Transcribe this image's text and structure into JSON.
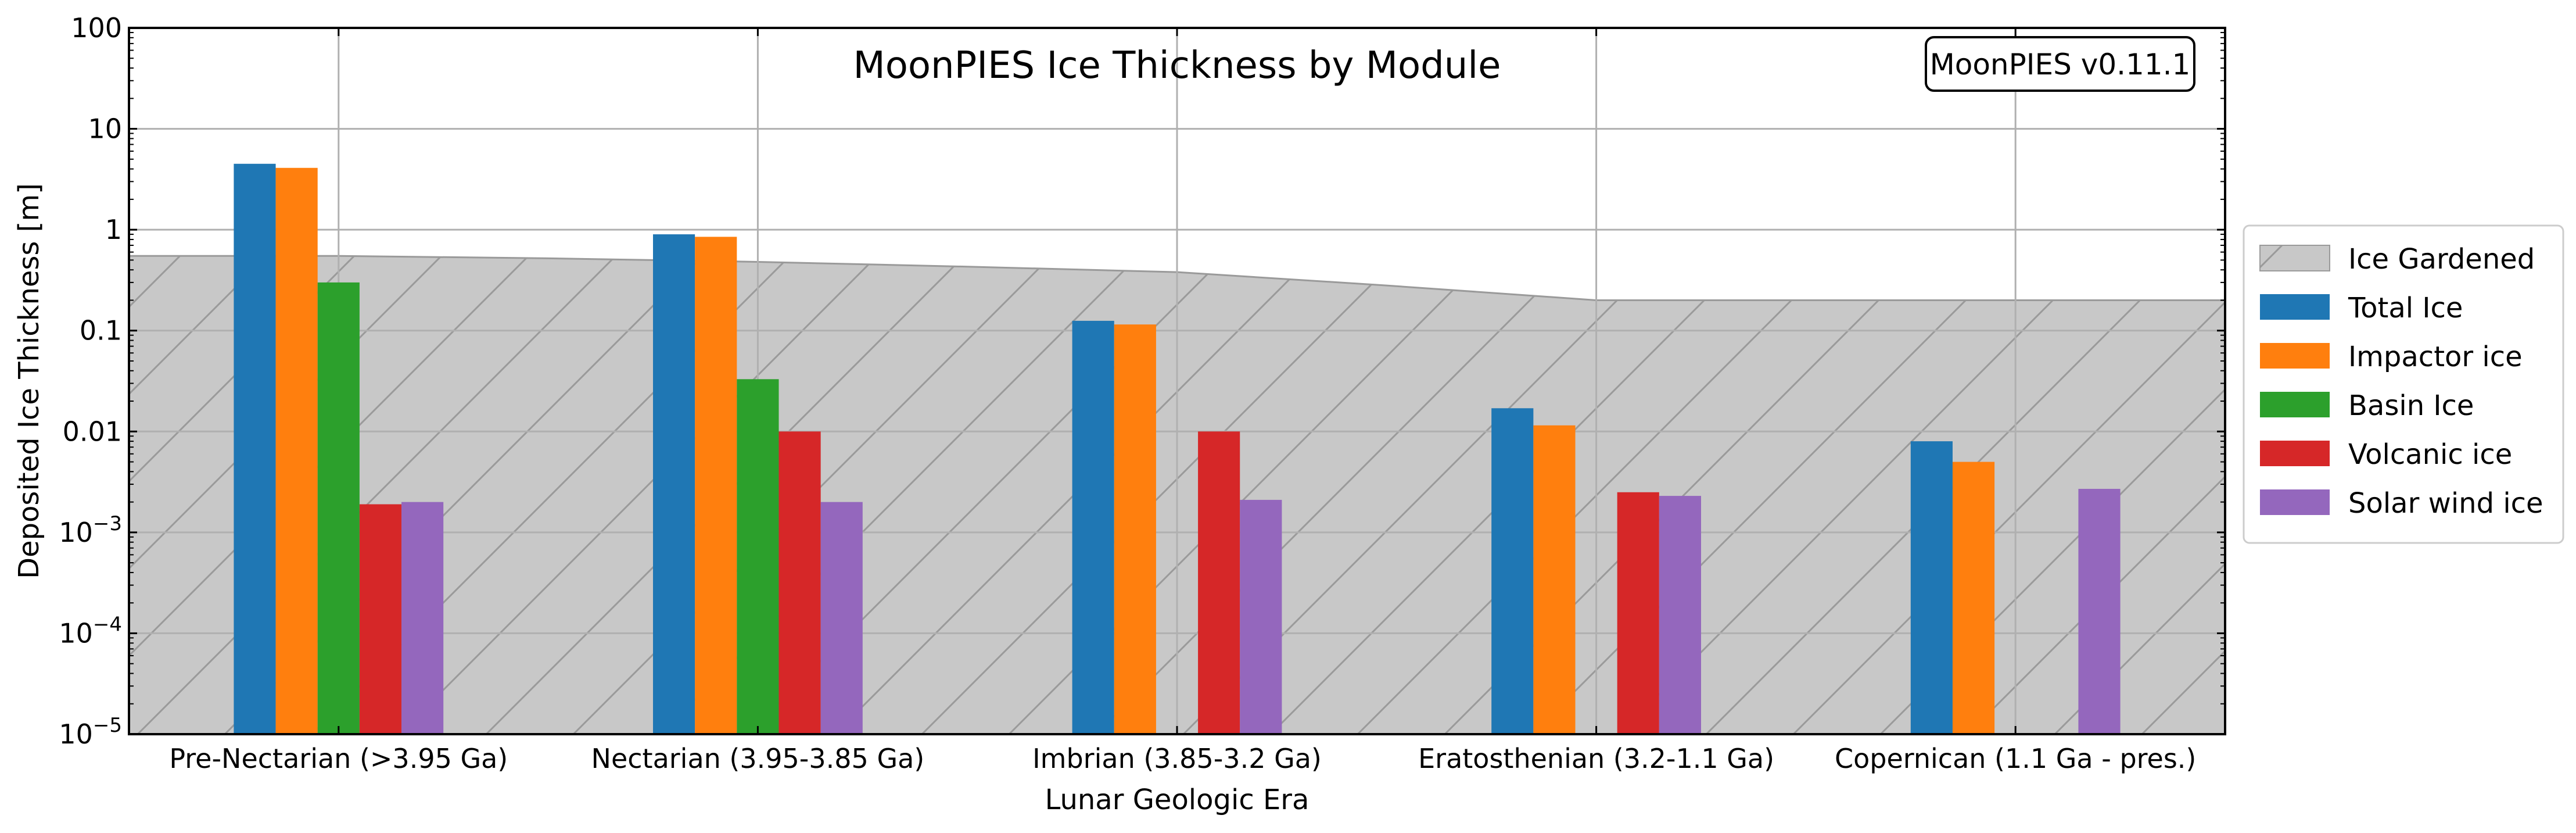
{
  "chart_data": {
    "type": "bar",
    "title": "MoonPIES Ice Thickness by Module",
    "version_label": "MoonPIES v0.11.1",
    "xlabel": "Lunar Geologic Era",
    "ylabel": "Deposited Ice Thickness [m]",
    "yscale": "log",
    "ylim": [
      1e-05,
      100
    ],
    "grid": true,
    "legend_position": "right",
    "categories": [
      "Pre-Nectarian (>3.95 Ga)",
      "Nectarian (3.95-3.85 Ga)",
      "Imbrian (3.85-3.2 Ga)",
      "Eratosthenian (3.2-1.1 Ga)",
      "Copernican (1.1 Ga - pres.)"
    ],
    "y_ticks": [
      {
        "value": 1e-05,
        "base": "10",
        "exp": "−5"
      },
      {
        "value": 0.0001,
        "base": "10",
        "exp": "−4"
      },
      {
        "value": 0.001,
        "base": "10",
        "exp": "−3"
      },
      {
        "value": 0.01,
        "base": "0.01",
        "exp": ""
      },
      {
        "value": 0.1,
        "base": "0.1",
        "exp": ""
      },
      {
        "value": 1,
        "base": "1",
        "exp": ""
      },
      {
        "value": 10,
        "base": "10",
        "exp": ""
      },
      {
        "value": 100,
        "base": "100",
        "exp": ""
      }
    ],
    "area_series": {
      "name": "Ice Gardened",
      "color": "#c8c8c8",
      "points": [
        {
          "x": -0.5,
          "y": 0.55
        },
        {
          "x": 0.0,
          "y": 0.55
        },
        {
          "x": 0.5,
          "y": 0.52
        },
        {
          "x": 1.0,
          "y": 0.48
        },
        {
          "x": 1.5,
          "y": 0.43
        },
        {
          "x": 2.0,
          "y": 0.38
        },
        {
          "x": 2.5,
          "y": 0.28
        },
        {
          "x": 3.0,
          "y": 0.2
        },
        {
          "x": 3.5,
          "y": 0.2
        },
        {
          "x": 4.0,
          "y": 0.2
        },
        {
          "x": 4.5,
          "y": 0.2
        }
      ]
    },
    "series": [
      {
        "name": "Total Ice",
        "color": "#1f77b4",
        "values": [
          4.5,
          0.9,
          0.125,
          0.017,
          0.008
        ]
      },
      {
        "name": "Impactor ice",
        "color": "#ff7f0e",
        "values": [
          4.1,
          0.85,
          0.115,
          0.0115,
          0.005
        ]
      },
      {
        "name": "Basin Ice",
        "color": "#2ca02c",
        "values": [
          0.3,
          0.033,
          null,
          null,
          null
        ]
      },
      {
        "name": "Volcanic ice",
        "color": "#d62728",
        "values": [
          0.0019,
          0.01,
          0.01,
          0.0025,
          null
        ]
      },
      {
        "name": "Solar wind ice",
        "color": "#9467bd",
        "values": [
          0.002,
          0.002,
          0.0021,
          0.0023,
          0.0027
        ]
      }
    ]
  }
}
